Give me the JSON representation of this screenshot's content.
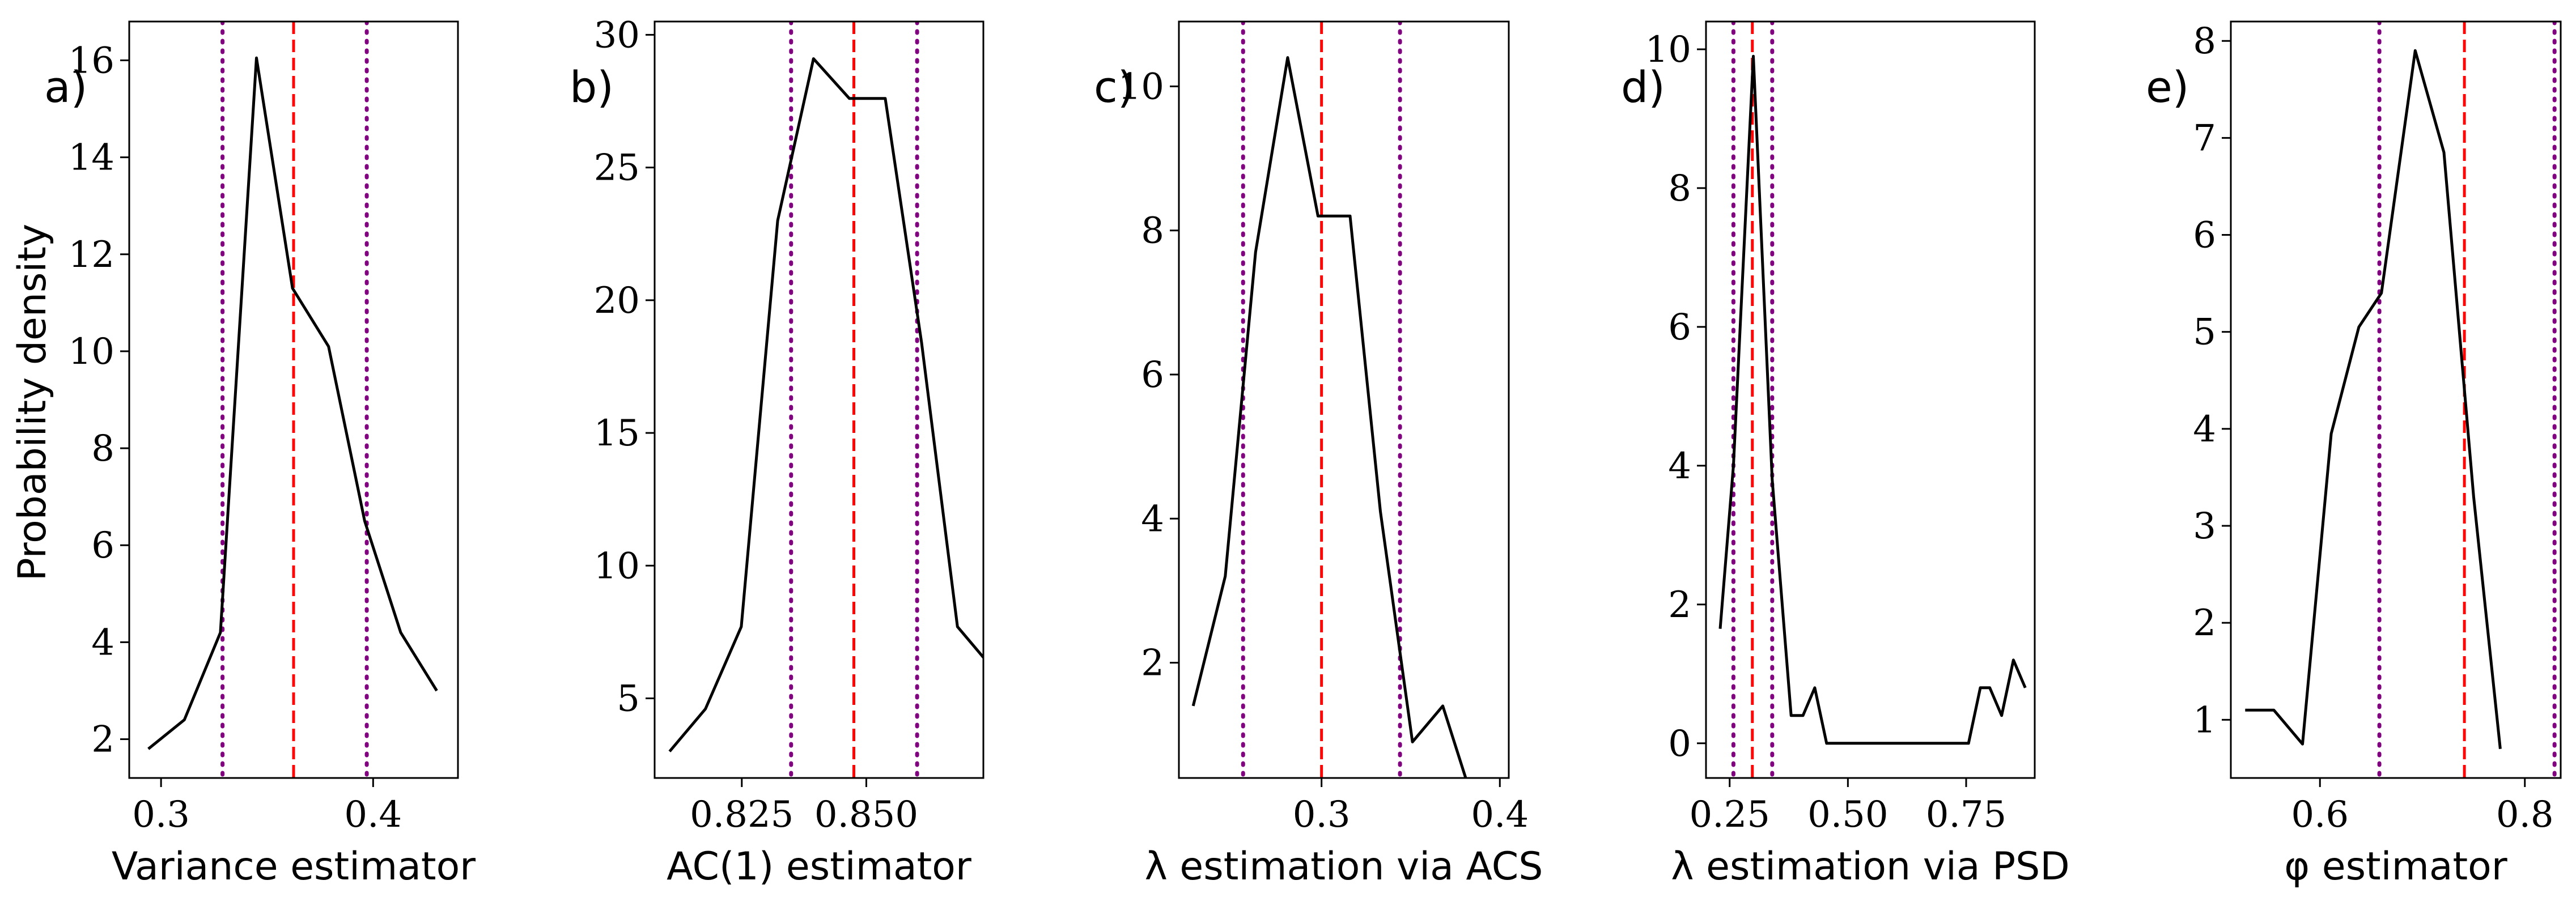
{
  "figure": {
    "ylabel": "Probability density"
  },
  "colors": {
    "line": "#000000",
    "mean": "#ff0000",
    "ci": "#800080"
  },
  "chart_data": [
    {
      "type": "line",
      "panel_tag": "a)",
      "xlabel": "Variance estimator",
      "xlim": [
        0.285,
        0.44
      ],
      "ylim": [
        1.2,
        16.8
      ],
      "xticks": [
        0.3,
        0.4
      ],
      "xtick_labels": [
        "0.3",
        "0.4"
      ],
      "yticks": [
        2,
        4,
        6,
        8,
        10,
        12,
        14,
        16
      ],
      "ytick_labels": [
        "2",
        "4",
        "6",
        "8",
        "10",
        "12",
        "14",
        "16"
      ],
      "x": [
        0.294,
        0.311,
        0.328,
        0.345,
        0.362,
        0.379,
        0.396,
        0.413,
        0.43
      ],
      "y": [
        1.8,
        2.4,
        4.2,
        16.05,
        11.3,
        10.1,
        6.5,
        4.2,
        3.0
      ],
      "mean_line": 0.3625,
      "ci_lines": [
        0.329,
        0.397
      ]
    },
    {
      "type": "line",
      "panel_tag": "b)",
      "xlabel": "AC(1) estimator",
      "xlim": [
        0.8075,
        0.8735
      ],
      "ylim": [
        2.0,
        30.5
      ],
      "xticks": [
        0.825,
        0.85
      ],
      "xtick_labels": [
        "0.825",
        "0.850"
      ],
      "yticks": [
        5,
        10,
        15,
        20,
        25,
        30
      ],
      "ytick_labels": [
        "5",
        "10",
        "15",
        "20",
        "25",
        "30"
      ],
      "x": [
        0.8105,
        0.8177,
        0.8249,
        0.8322,
        0.8394,
        0.8466,
        0.8538,
        0.8611,
        0.8683,
        0.8755
      ],
      "y": [
        3.0,
        4.6,
        7.7,
        23.0,
        29.1,
        27.6,
        27.6,
        18.4,
        7.7,
        6.1
      ],
      "mean_line": 0.8475,
      "ci_lines": [
        0.8349,
        0.8602
      ]
    },
    {
      "type": "line",
      "panel_tag": "c)",
      "xlabel": "λ estimation via ACS",
      "xlim": [
        0.22,
        0.405
      ],
      "ylim": [
        0.4,
        10.9
      ],
      "xticks": [
        0.3,
        0.4
      ],
      "xtick_labels": [
        "0.3",
        "0.4"
      ],
      "yticks": [
        2,
        4,
        6,
        8,
        10
      ],
      "ytick_labels": [
        "2",
        "4",
        "6",
        "8",
        "10"
      ],
      "x": [
        0.228,
        0.246,
        0.263,
        0.281,
        0.298,
        0.316,
        0.333,
        0.351,
        0.368,
        0.386,
        0.403
      ],
      "y": [
        1.4,
        3.2,
        7.7,
        10.4,
        8.2,
        8.2,
        4.1,
        0.9,
        1.4,
        0.0,
        0.0
      ],
      "mean_line": 0.3,
      "ci_lines": [
        0.256,
        0.344
      ]
    },
    {
      "type": "line",
      "panel_tag": "d)",
      "xlabel": "λ estimation via PSD",
      "xlim": [
        0.2,
        0.895
      ],
      "ylim": [
        -0.5,
        10.4
      ],
      "xticks": [
        0.25,
        0.5,
        0.75
      ],
      "xtick_labels": [
        "0.25",
        "0.50",
        "0.75"
      ],
      "yticks": [
        0,
        2,
        4,
        6,
        8,
        10
      ],
      "ytick_labels": [
        "0",
        "2",
        "4",
        "6",
        "8",
        "10"
      ],
      "x": [
        0.23,
        0.258,
        0.3,
        0.34,
        0.38,
        0.405,
        0.43,
        0.455,
        0.5,
        0.55,
        0.6,
        0.65,
        0.7,
        0.755,
        0.78,
        0.8,
        0.825,
        0.85,
        0.875
      ],
      "y": [
        1.65,
        4.0,
        9.9,
        3.8,
        0.4,
        0.4,
        0.8,
        0.0,
        0.0,
        0.0,
        0.0,
        0.0,
        0.0,
        0.0,
        0.8,
        0.8,
        0.4,
        1.2,
        0.8
      ],
      "mean_line": 0.298,
      "ci_lines": [
        0.258,
        0.34
      ]
    },
    {
      "type": "line",
      "panel_tag": "e)",
      "xlabel": "φ estimator",
      "xlim": [
        0.513,
        0.835
      ],
      "ylim": [
        0.4,
        8.2
      ],
      "xticks": [
        0.6,
        0.8
      ],
      "xtick_labels": [
        "0.6",
        "0.8"
      ],
      "yticks": [
        1,
        2,
        3,
        4,
        5,
        6,
        7,
        8
      ],
      "ytick_labels": [
        "1",
        "2",
        "3",
        "4",
        "5",
        "6",
        "7",
        "8"
      ],
      "x": [
        0.527,
        0.555,
        0.583,
        0.611,
        0.638,
        0.66,
        0.693,
        0.721,
        0.75,
        0.776
      ],
      "y": [
        1.1,
        1.1,
        0.75,
        3.95,
        5.05,
        5.4,
        7.9,
        6.85,
        3.3,
        0.7
      ],
      "mean_line": 0.741,
      "ci_lines": [
        0.658,
        0.829
      ]
    }
  ]
}
